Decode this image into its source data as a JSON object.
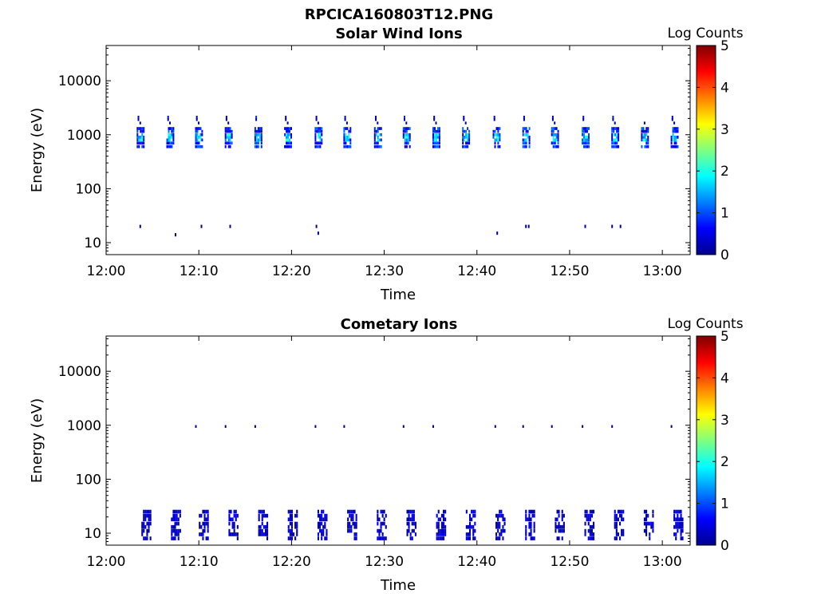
{
  "figure_title": "RPCICA160803T12.PNG",
  "colorbar": {
    "label": "Log Counts",
    "ticks": [
      "0",
      "1",
      "2",
      "3",
      "4",
      "5"
    ],
    "min": 0,
    "max": 5,
    "colormap": "jet"
  },
  "chart_data": [
    {
      "type": "heatmap",
      "title": "Solar Wind Ions",
      "xlabel": "Time",
      "ylabel": "Energy (eV)",
      "yscale": "log",
      "xlim": [
        "12:00",
        "13:03"
      ],
      "ylim": [
        6,
        45000
      ],
      "xticks": [
        "12:00",
        "12:10",
        "12:20",
        "12:30",
        "12:40",
        "12:50",
        "13:00"
      ],
      "yticks": [
        "10",
        "100",
        "1000",
        "10000"
      ],
      "scan_times": [
        "12:03.3",
        "12:06.5",
        "12:09.6",
        "12:12.8",
        "12:16.0",
        "12:19.2",
        "12:22.5",
        "12:25.6",
        "12:28.9",
        "12:32.0",
        "12:35.2",
        "12:38.4",
        "12:41.7",
        "12:44.9",
        "12:48.0",
        "12:51.3",
        "12:54.5",
        "12:57.7",
        "13:00.9"
      ],
      "peak_energy_eV": 900,
      "peak_log_counts": 2.2,
      "low_energy_cells": [
        {
          "time": "12:03.6",
          "energy_eV": 20,
          "log_counts": 0.2
        },
        {
          "time": "12:07.4",
          "energy_eV": 14,
          "log_counts": 0.2
        },
        {
          "time": "12:10.2",
          "energy_eV": 20,
          "log_counts": 0.2
        },
        {
          "time": "12:13.3",
          "energy_eV": 20,
          "log_counts": 0.2
        },
        {
          "time": "12:22.6",
          "energy_eV": 20,
          "log_counts": 0.2
        },
        {
          "time": "12:22.8",
          "energy_eV": 15,
          "log_counts": 0.2
        },
        {
          "time": "12:42.1",
          "energy_eV": 15,
          "log_counts": 0.2
        },
        {
          "time": "12:45.2",
          "energy_eV": 20,
          "log_counts": 0.2
        },
        {
          "time": "12:45.5",
          "energy_eV": 20,
          "log_counts": 0.2
        },
        {
          "time": "12:51.6",
          "energy_eV": 20,
          "log_counts": 0.2
        },
        {
          "time": "12:54.5",
          "energy_eV": 20,
          "log_counts": 0.2
        },
        {
          "time": "12:55.4",
          "energy_eV": 20,
          "log_counts": 0.2
        }
      ]
    },
    {
      "type": "heatmap",
      "title": "Cometary Ions",
      "xlabel": "Time",
      "ylabel": "Energy (eV)",
      "yscale": "log",
      "xlim": [
        "12:00",
        "13:03"
      ],
      "ylim": [
        6,
        45000
      ],
      "xticks": [
        "12:00",
        "12:10",
        "12:20",
        "12:30",
        "12:40",
        "12:50",
        "13:00"
      ],
      "yticks": [
        "10",
        "100",
        "1000",
        "10000"
      ],
      "scan_times": [
        "12:03.8",
        "12:07.0",
        "12:10.0",
        "12:13.2",
        "12:16.4",
        "12:19.6",
        "12:22.8",
        "12:26.0",
        "12:29.2",
        "12:32.4",
        "12:35.6",
        "12:38.8",
        "12:42.0",
        "12:45.2",
        "12:48.4",
        "12:51.6",
        "12:54.8",
        "12:58.0",
        "13:01.2"
      ],
      "band_energy_eV": [
        8,
        28
      ],
      "peak_log_counts": 0.6,
      "high_energy_cells_time": [
        "12:09.6",
        "12:12.8",
        "12:16.0",
        "12:22.5",
        "12:25.6",
        "12:32.0",
        "12:35.2",
        "12:41.9",
        "12:44.9",
        "12:48.0",
        "12:51.3",
        "12:54.5",
        "13:00.9"
      ],
      "high_energy_cells_eV": 950
    }
  ]
}
